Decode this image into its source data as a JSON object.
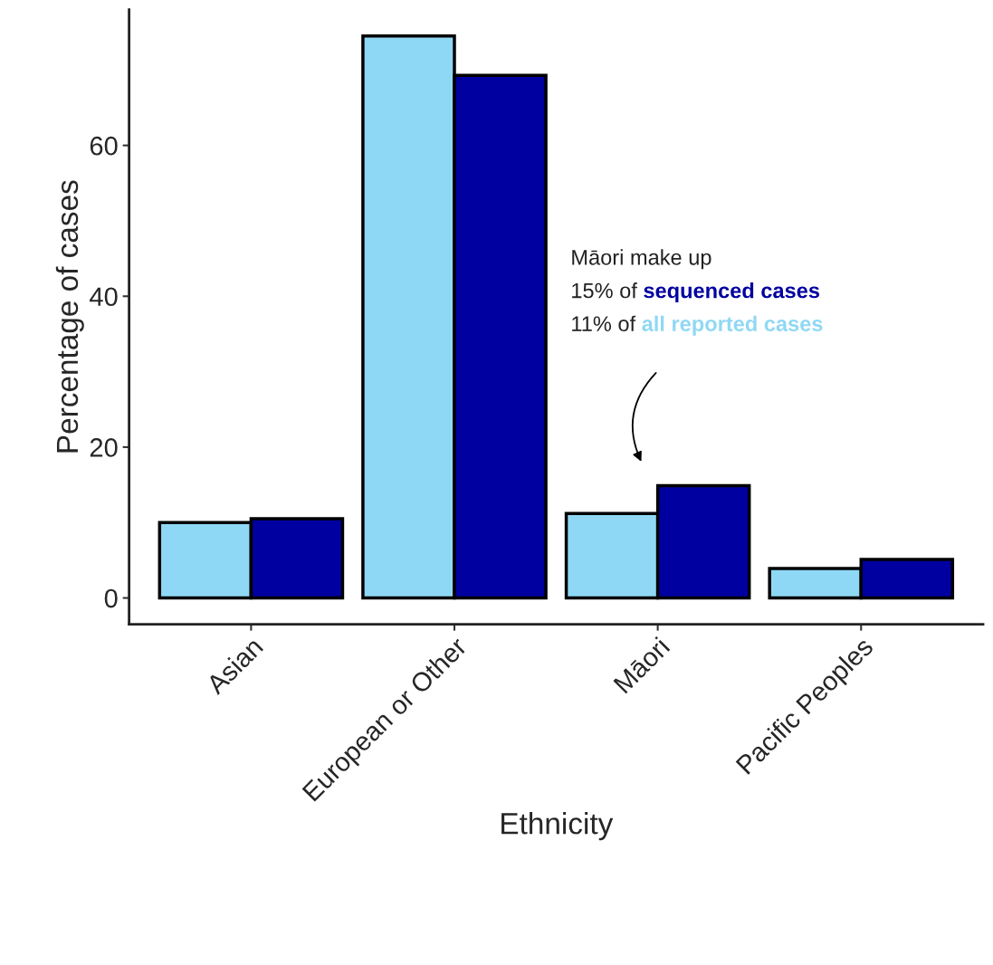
{
  "chart_data": {
    "type": "bar",
    "xlabel": "Ethnicity",
    "ylabel": "Percentage of cases",
    "categories": [
      "Asian",
      "European or Other",
      "Māori",
      "Pacific Peoples"
    ],
    "series": [
      {
        "name": "all reported cases",
        "color": "#8fd8f5",
        "values": [
          10.0,
          74.5,
          11.2,
          3.9
        ]
      },
      {
        "name": "sequenced cases",
        "color": "#0000a0",
        "values": [
          10.5,
          69.3,
          14.9,
          5.1
        ]
      }
    ],
    "ylim": [
      -3.5,
      78
    ],
    "yticks": [
      0,
      20,
      40,
      60
    ],
    "grid": false,
    "legend": false,
    "annotations": [
      "Māori make up",
      "15% of",
      "11% of"
    ]
  }
}
